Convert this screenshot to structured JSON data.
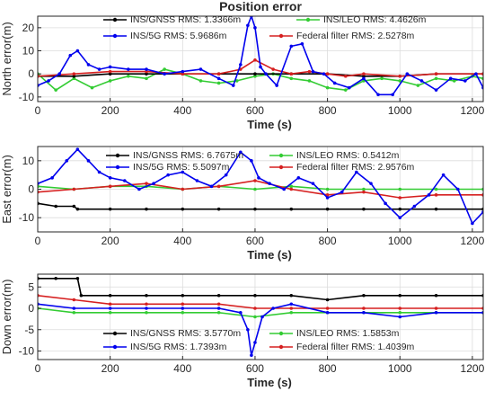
{
  "title": "Position error",
  "xlabel": "Time (s)",
  "xticks": [
    0,
    200,
    400,
    600,
    800,
    1000,
    1200
  ],
  "colors": {
    "INS/GNSS": "#000000",
    "INS/LEO": "#33cc33",
    "INS/5G": "#0000ee",
    "Federal filter": "#d62020"
  },
  "chart_data": [
    {
      "type": "line",
      "ylabel": "North error(m)",
      "xlim": [
        0,
        1230
      ],
      "ylim": [
        -12,
        25
      ],
      "yticks": [
        -10,
        0,
        10,
        20
      ],
      "legend": [
        {
          "name": "INS/GNSS",
          "text": "INS/GNSS RMS:  1.3366m"
        },
        {
          "name": "INS/LEO",
          "text": "INS/LEO RMS: 4.4626m"
        },
        {
          "name": "INS/5G",
          "text": "INS/5G RMS:  5.9686m"
        },
        {
          "name": "Federal filter",
          "text": "Federal filter RMS:  2.5278m"
        }
      ],
      "series": [
        {
          "name": "INS/GNSS",
          "x": [
            0,
            100,
            200,
            300,
            400,
            500,
            600,
            700,
            800,
            900,
            1000,
            1100,
            1230
          ],
          "y": [
            -1,
            -1,
            0,
            0,
            0,
            0,
            0,
            0,
            0,
            -1,
            -1,
            0,
            0
          ]
        },
        {
          "name": "INS/LEO",
          "x": [
            0,
            50,
            100,
            150,
            200,
            250,
            300,
            350,
            400,
            450,
            500,
            550,
            600,
            650,
            700,
            750,
            800,
            850,
            900,
            950,
            1000,
            1050,
            1100,
            1150,
            1200,
            1230
          ],
          "y": [
            0,
            -7,
            -2,
            -6,
            -3,
            -1,
            -2,
            2,
            0,
            -3,
            -4,
            -3,
            -1,
            0,
            -2,
            -3,
            -6,
            -7,
            -3,
            -2,
            -3,
            -5,
            -2,
            -3,
            -1,
            -2
          ]
        },
        {
          "name": "INS/5G",
          "x": [
            0,
            30,
            60,
            90,
            110,
            140,
            170,
            200,
            250,
            300,
            350,
            400,
            450,
            500,
            540,
            560,
            580,
            590,
            600,
            615,
            630,
            660,
            700,
            730,
            760,
            790,
            820,
            860,
            900,
            940,
            980,
            1020,
            1060,
            1100,
            1140,
            1180,
            1210,
            1230
          ],
          "y": [
            -5,
            -3,
            0,
            8,
            10,
            4,
            2,
            3,
            2,
            2,
            0,
            1,
            2,
            -2,
            -5,
            4,
            21,
            25,
            20,
            3,
            0,
            -5,
            12,
            13,
            1,
            0,
            -4,
            -6,
            -2,
            -9,
            -9,
            0,
            -3,
            -7,
            -2,
            -3,
            0,
            -6
          ]
        },
        {
          "name": "Federal filter",
          "x": [
            0,
            100,
            200,
            300,
            400,
            500,
            560,
            600,
            650,
            700,
            750,
            800,
            850,
            900,
            1000,
            1100,
            1230
          ],
          "y": [
            -1,
            0,
            1,
            1,
            0,
            0,
            2,
            6,
            2,
            0,
            1,
            0,
            -1,
            0,
            -1,
            0,
            0
          ]
        }
      ]
    },
    {
      "type": "line",
      "ylabel": "East error(m)",
      "xlim": [
        0,
        1230
      ],
      "ylim": [
        -15,
        15
      ],
      "yticks": [
        -10,
        0,
        10
      ],
      "legend": [
        {
          "name": "INS/GNSS",
          "text": "INS/GNSS RMS:  6.7675m"
        },
        {
          "name": "INS/LEO",
          "text": "INS/LEO RMS:  0.5412m"
        },
        {
          "name": "INS/5G",
          "text": "INS/5G RMS:  5.5097m"
        },
        {
          "name": "Federal filter",
          "text": "Federal filter RMS:  2.9576m"
        }
      ],
      "series": [
        {
          "name": "INS/GNSS",
          "x": [
            0,
            50,
            100,
            110,
            200,
            300,
            400,
            500,
            600,
            700,
            800,
            900,
            1000,
            1100,
            1230
          ],
          "y": [
            -5,
            -6,
            -6,
            -7,
            -7,
            -7,
            -7,
            -7,
            -7,
            -7,
            -7,
            -7,
            -7,
            -7,
            -7
          ]
        },
        {
          "name": "INS/LEO",
          "x": [
            0,
            100,
            200,
            300,
            400,
            500,
            600,
            700,
            800,
            900,
            1000,
            1100,
            1230
          ],
          "y": [
            1,
            0,
            1,
            1,
            0,
            1,
            0,
            1,
            0,
            0,
            0,
            0,
            0
          ]
        },
        {
          "name": "INS/5G",
          "x": [
            0,
            40,
            80,
            110,
            140,
            170,
            200,
            240,
            280,
            320,
            360,
            400,
            440,
            480,
            520,
            560,
            590,
            610,
            640,
            680,
            720,
            760,
            800,
            840,
            880,
            920,
            960,
            1000,
            1040,
            1080,
            1120,
            1160,
            1200,
            1230
          ],
          "y": [
            2,
            4,
            10,
            14,
            10,
            6,
            4,
            3,
            0,
            2,
            5,
            6,
            3,
            1,
            5,
            13,
            10,
            4,
            2,
            0,
            4,
            2,
            -3,
            -1,
            6,
            2,
            -5,
            -10,
            -6,
            -2,
            5,
            0,
            -12,
            -8
          ]
        },
        {
          "name": "Federal filter",
          "x": [
            0,
            100,
            200,
            300,
            400,
            500,
            600,
            700,
            800,
            900,
            1000,
            1100,
            1230
          ],
          "y": [
            -1,
            0,
            1,
            2,
            0,
            1,
            3,
            0,
            -2,
            -1,
            -3,
            -2,
            -2
          ]
        }
      ]
    },
    {
      "type": "line",
      "ylabel": "Down error(m)",
      "xlim": [
        0,
        1230
      ],
      "ylim": [
        -12,
        8
      ],
      "yticks": [
        -10,
        -5,
        0,
        5
      ],
      "legend": [
        {
          "name": "INS/GNSS",
          "text": "INS/GNSS RMS:  3.5770m"
        },
        {
          "name": "INS/LEO",
          "text": "INS/LEO RMS:  1.5853m"
        },
        {
          "name": "INS/5G",
          "text": "INS/5G RMS:  1.7393m"
        },
        {
          "name": "Federal filter",
          "text": "Federal filter RMS:  1.4039m"
        }
      ],
      "series": [
        {
          "name": "INS/GNSS",
          "x": [
            0,
            50,
            110,
            120,
            200,
            300,
            400,
            500,
            600,
            700,
            800,
            900,
            1000,
            1100,
            1230
          ],
          "y": [
            7,
            7,
            7,
            3,
            3,
            3,
            3,
            3,
            3,
            3,
            2,
            3,
            3,
            3,
            3
          ]
        },
        {
          "name": "INS/LEO",
          "x": [
            0,
            100,
            200,
            300,
            400,
            500,
            600,
            700,
            800,
            900,
            1000,
            1100,
            1230
          ],
          "y": [
            0,
            -1,
            -1,
            -1,
            -1,
            -1,
            -2,
            -1,
            -1,
            -1,
            -1,
            -1,
            -1
          ]
        },
        {
          "name": "INS/5G",
          "x": [
            0,
            100,
            200,
            300,
            400,
            500,
            560,
            580,
            590,
            600,
            620,
            650,
            700,
            800,
            900,
            1000,
            1100,
            1230
          ],
          "y": [
            1,
            0,
            0,
            0,
            0,
            0,
            -1,
            -5,
            -11,
            -8,
            -2,
            0,
            1,
            -1,
            -1,
            -2,
            -1,
            -1
          ]
        },
        {
          "name": "Federal filter",
          "x": [
            0,
            100,
            200,
            300,
            400,
            500,
            600,
            700,
            800,
            900,
            1000,
            1100,
            1230
          ],
          "y": [
            3,
            2,
            1,
            1,
            1,
            1,
            0,
            0,
            0,
            0,
            0,
            0,
            0
          ]
        }
      ]
    }
  ]
}
